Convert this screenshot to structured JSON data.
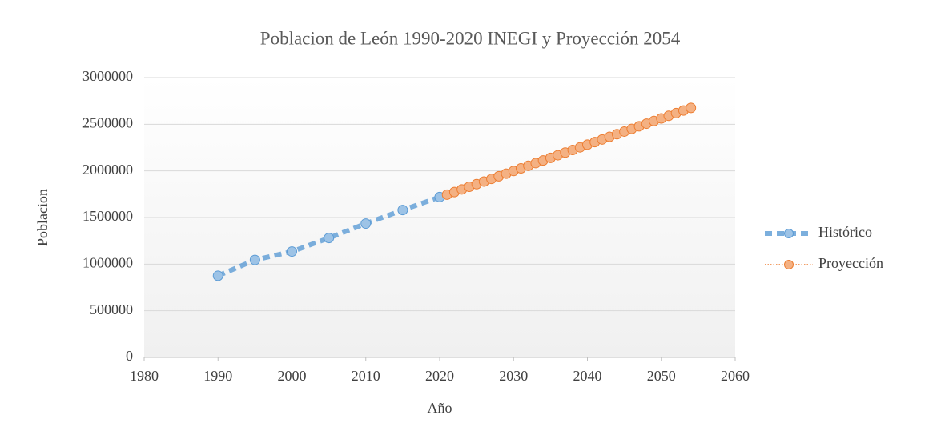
{
  "chart_data": {
    "type": "scatter",
    "title": "Poblacion de León 1990-2020 INEGI y Proyección 2054",
    "xlabel": "Año",
    "ylabel": "Poblacion",
    "xlim": [
      1980,
      2060
    ],
    "xticks": [
      1980,
      1990,
      2000,
      2010,
      2020,
      2030,
      2040,
      2050,
      2060
    ],
    "ylim": [
      0,
      3000000
    ],
    "yticks": [
      0,
      500000,
      1000000,
      1500000,
      2000000,
      2500000,
      3000000
    ],
    "grid": true,
    "legend": "right",
    "series": [
      {
        "name": "Histórico",
        "color": "#5b9bd5",
        "line_style": "dashed",
        "x": [
          1990,
          1995,
          2000,
          2005,
          2010,
          2015,
          2020
        ],
        "values": [
          875000,
          1045000,
          1135000,
          1280000,
          1435000,
          1580000,
          1720000
        ]
      },
      {
        "name": "Proyección",
        "color": "#ed7d31",
        "line_style": "dotted",
        "x": [
          2021,
          2022,
          2023,
          2024,
          2025,
          2026,
          2027,
          2028,
          2029,
          2030,
          2031,
          2032,
          2033,
          2034,
          2035,
          2036,
          2037,
          2038,
          2039,
          2040,
          2041,
          2042,
          2043,
          2044,
          2045,
          2046,
          2047,
          2048,
          2049,
          2050,
          2051,
          2052,
          2053,
          2054
        ],
        "values": [
          1745000,
          1773200,
          1801400,
          1829600,
          1857800,
          1886000,
          1914200,
          1942400,
          1970600,
          1998800,
          2027000,
          2055200,
          2083400,
          2111600,
          2139800,
          2168000,
          2196200,
          2224400,
          2252600,
          2280800,
          2309000,
          2337200,
          2365400,
          2393600,
          2421800,
          2450000,
          2478200,
          2506400,
          2534600,
          2562800,
          2591000,
          2619200,
          2647400,
          2675600
        ]
      }
    ]
  }
}
